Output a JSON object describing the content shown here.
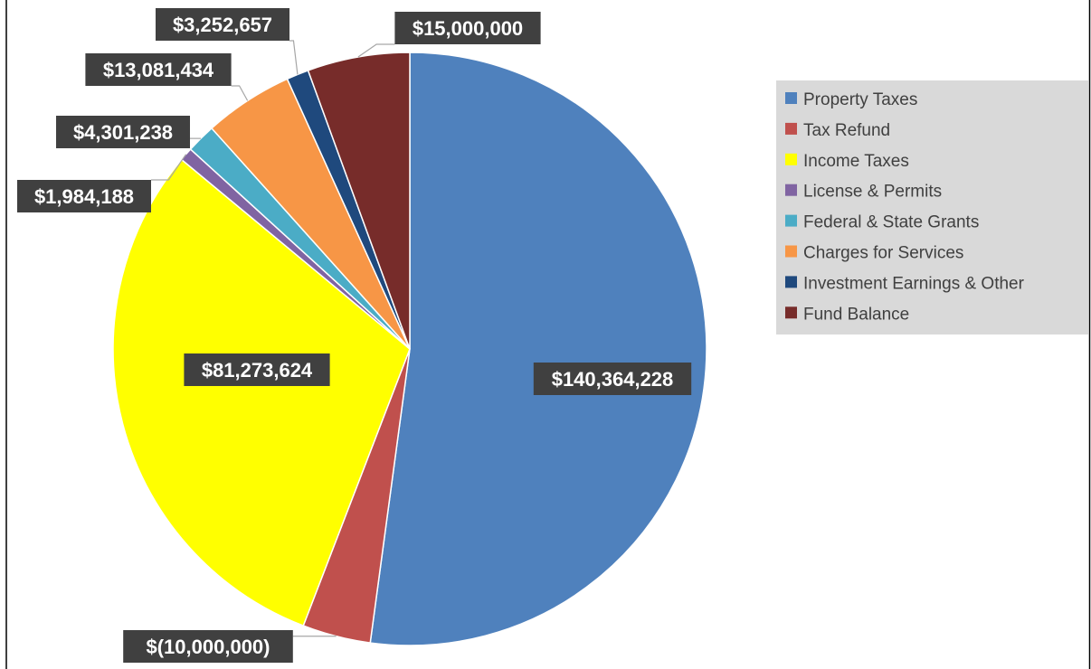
{
  "chart_data": {
    "type": "pie",
    "title": "",
    "categories": [
      "Property Taxes",
      "Tax Refund",
      "Income Taxes",
      "License & Permits",
      "Federal & State Grants",
      "Charges for Services",
      "Investment Earnings & Other",
      "Fund Balance"
    ],
    "values": [
      140364228,
      -10000000,
      81273624,
      1984188,
      4301238,
      13081434,
      3252657,
      15000000
    ],
    "data_labels": [
      "$140,364,228",
      "$(10,000,000)",
      "$81,273,624",
      "$1,984,188",
      "$4,301,238",
      "$13,081,434",
      "$3,252,657",
      "$15,000,000"
    ],
    "colors": [
      "#4F81BD",
      "#C0504D",
      "#FFFF00",
      "#8064A2",
      "#4BACC6",
      "#F79646",
      "#1F497D",
      "#772C2A"
    ],
    "legend_position": "right",
    "legend_background": "#D9D9D9",
    "label_box_color": "#404040",
    "label_text_color": "#FFFFFF"
  }
}
